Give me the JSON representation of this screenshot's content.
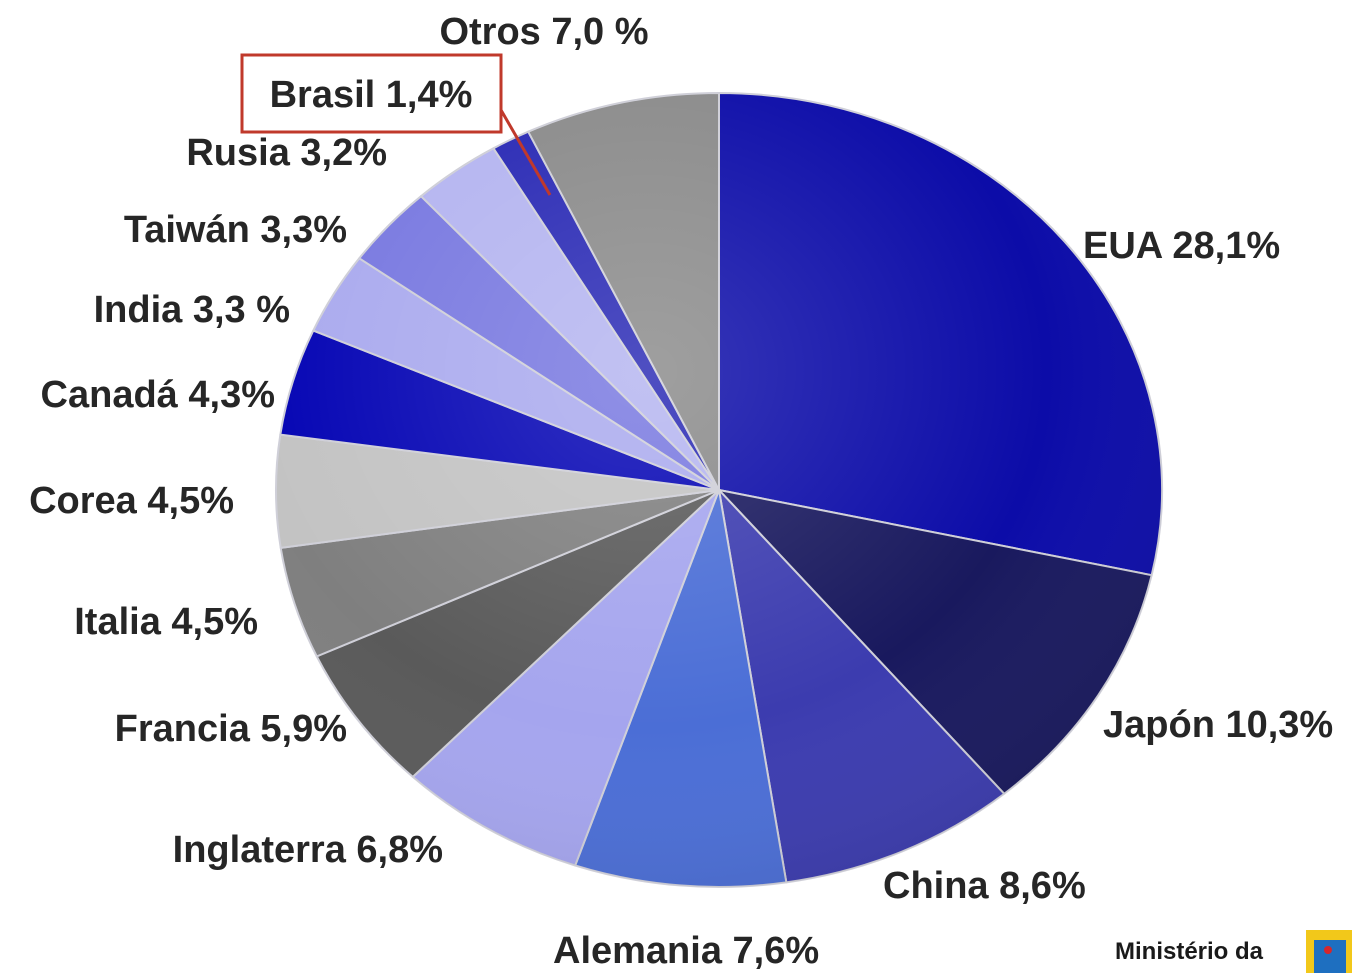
{
  "chart_data": {
    "type": "pie",
    "title": "",
    "start_angle_deg": 0,
    "direction": "clockwise",
    "legend": "none",
    "slices": [
      {
        "label": "EUA 28,1%",
        "name": "EUA",
        "value": 28.1,
        "color": "#0c0ca8"
      },
      {
        "label": "Japón 10,3%",
        "name": "Japón",
        "value": 10.3,
        "color": "#19195e"
      },
      {
        "label": "China 8,6%",
        "name": "China",
        "value": 8.6,
        "color": "#3c3caf"
      },
      {
        "label": "Alemania 7,6%",
        "name": "Alemania",
        "value": 7.6,
        "color": "#4b6ed6"
      },
      {
        "label": "Inglaterra 6,8%",
        "name": "Inglaterra",
        "value": 6.8,
        "color": "#a5a5ee"
      },
      {
        "label": "Francia 5,9%",
        "name": "Francia",
        "value": 5.9,
        "color": "#5a5a5a"
      },
      {
        "label": "Italia 4,5%",
        "name": "Italia",
        "value": 4.5,
        "color": "#7f7f7f"
      },
      {
        "label": "Corea 4,5%",
        "name": "Corea",
        "value": 4.5,
        "color": "#c3c3c3"
      },
      {
        "label": "Canadá 4,3%",
        "name": "Canadá",
        "value": 4.3,
        "color": "#0505b4"
      },
      {
        "label": "India 3,3 %",
        "name": "India",
        "value": 3.3,
        "color": "#aaaaee"
      },
      {
        "label": "Taiwán 3,3%",
        "name": "Taiwán",
        "value": 3.3,
        "color": "#7878e0"
      },
      {
        "label": "Rusia 3,2%",
        "name": "Rusia",
        "value": 3.2,
        "color": "#b4b4f0"
      },
      {
        "label": "Brasil 1,4%",
        "name": "Brasil",
        "value": 1.4,
        "color": "#2828b4",
        "highlighted": true
      },
      {
        "label": "Otros 7,0 %",
        "name": "Otros",
        "value": 7.0,
        "color": "#8a8a8a"
      }
    ]
  },
  "highlight": {
    "border_color": "#c0392b"
  },
  "footer": {
    "text": "Ministério da"
  }
}
